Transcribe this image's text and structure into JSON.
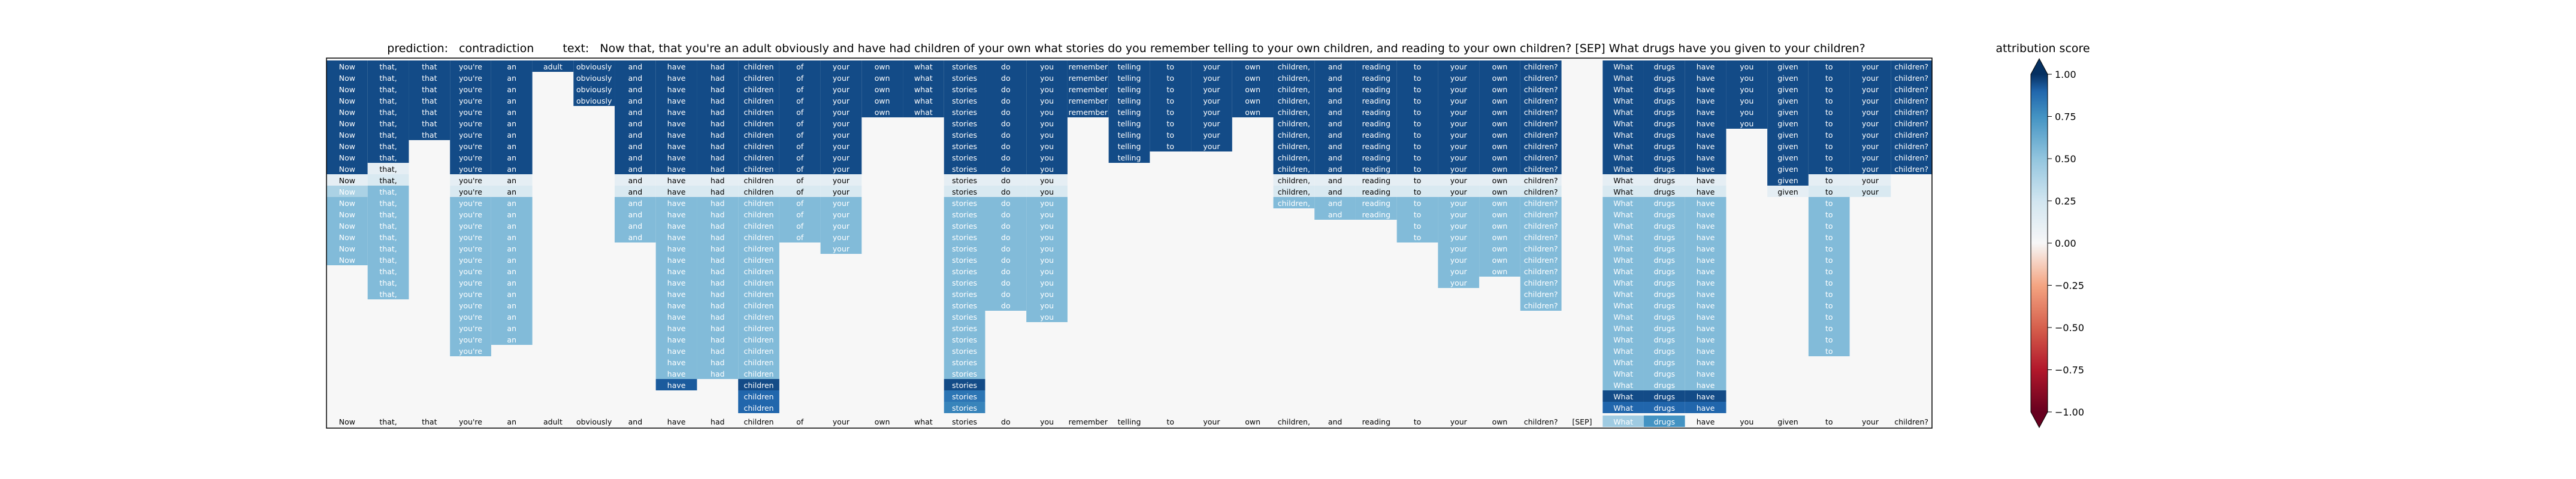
{
  "chart_data": {
    "type": "heatmap",
    "title": {
      "prediction_label": "prediction:",
      "prediction": "contradiction",
      "text_label": "text:",
      "text": "Now that, that you're an adult obviously and have had children of your own what stories do you remember telling to your own children, and reading to your own children? [SEP] What drugs have you given to your children?"
    },
    "tokens": [
      "Now",
      "that,",
      "that",
      "you're",
      "an",
      "adult",
      "obviously",
      "and",
      "have",
      "had",
      "children",
      "of",
      "your",
      "own",
      "what",
      "stories",
      "do",
      "you",
      "remember",
      "telling",
      "to",
      "your",
      "own",
      "children,",
      "and",
      "reading",
      "to",
      "your",
      "own",
      "children?",
      "[SEP]",
      "What",
      "drugs",
      "have",
      "you",
      "given",
      "to",
      "your",
      "children?"
    ],
    "row_count": 31,
    "colorbar": {
      "label": "attribution score",
      "vmin": -1.0,
      "vmax": 1.0,
      "ticks": [
        1.0,
        0.75,
        0.5,
        0.25,
        0.0,
        -0.25,
        -0.5,
        -0.75,
        -1.0
      ],
      "tick_labels": [
        "1.00",
        "0.75",
        "0.50",
        "0.25",
        "0.00",
        "−0.25",
        "−0.50",
        "−0.75",
        "−1.00"
      ],
      "colormap": "RdBu"
    },
    "columns": [
      {
        "rows": 10,
        "score": 0.95,
        "tail": [
          0.12,
          0.4,
          0.55,
          0.55,
          0.55,
          0.55,
          0.55,
          0.55
        ]
      },
      {
        "rows": 9,
        "score": 0.95,
        "tail": [
          0.12,
          0.2,
          0.55,
          0.55,
          0.55,
          0.55,
          0.55,
          0.55,
          0.55,
          0.55,
          0.55,
          0.55
        ]
      },
      {
        "rows": 7,
        "score": 0.95,
        "tail": []
      },
      {
        "rows": 10,
        "score": 0.95,
        "tail": [
          0.12,
          0.2,
          0.55,
          0.55,
          0.55,
          0.55,
          0.55,
          0.55,
          0.55,
          0.55,
          0.55,
          0.55,
          0.55,
          0.55,
          0.55,
          0.55
        ]
      },
      {
        "rows": 10,
        "score": 0.95,
        "tail": [
          0.12,
          0.2,
          0.55,
          0.55,
          0.55,
          0.55,
          0.55,
          0.55,
          0.55,
          0.55,
          0.55,
          0.55,
          0.55,
          0.55,
          0.55
        ]
      },
      {
        "rows": 1,
        "score": 0.95,
        "tail": []
      },
      {
        "rows": 4,
        "score": 0.95,
        "tail": []
      },
      {
        "rows": 10,
        "score": 0.95,
        "tail": [
          0.12,
          0.2,
          0.55,
          0.55,
          0.55,
          0.55
        ]
      },
      {
        "rows": 10,
        "score": 0.95,
        "tail": [
          0.12,
          0.2,
          0.55,
          0.55,
          0.55,
          0.55,
          0.55,
          0.55,
          0.55,
          0.55,
          0.55,
          0.55,
          0.55,
          0.55,
          0.55,
          0.55,
          0.55,
          0.55,
          0.92
        ]
      },
      {
        "rows": 10,
        "score": 0.95,
        "tail": [
          0.12,
          0.2,
          0.55,
          0.55,
          0.55,
          0.55,
          0.55,
          0.55,
          0.55,
          0.55,
          0.55,
          0.55,
          0.55,
          0.55,
          0.55,
          0.55,
          0.55,
          0.55
        ]
      },
      {
        "rows": 10,
        "score": 0.95,
        "tail": [
          0.12,
          0.2,
          0.55,
          0.55,
          0.55,
          0.55,
          0.55,
          0.55,
          0.55,
          0.55,
          0.55,
          0.55,
          0.55,
          0.55,
          0.55,
          0.55,
          0.55,
          0.55,
          0.95,
          0.9,
          0.9
        ]
      },
      {
        "rows": 10,
        "score": 0.95,
        "tail": [
          0.12,
          0.2,
          0.55,
          0.55,
          0.55,
          0.55
        ]
      },
      {
        "rows": 10,
        "score": 0.95,
        "tail": [
          0.12,
          0.2,
          0.55,
          0.55,
          0.55,
          0.55,
          0.55
        ]
      },
      {
        "rows": 5,
        "score": 0.95,
        "tail": []
      },
      {
        "rows": 5,
        "score": 0.95,
        "tail": []
      },
      {
        "rows": 10,
        "score": 0.95,
        "tail": [
          0.12,
          0.2,
          0.55,
          0.55,
          0.55,
          0.55,
          0.55,
          0.55,
          0.55,
          0.55,
          0.55,
          0.55,
          0.55,
          0.55,
          0.55,
          0.55,
          0.55,
          0.55,
          0.95,
          0.85,
          0.8,
          0.85,
          0.75
        ]
      },
      {
        "rows": 10,
        "score": 0.95,
        "tail": [
          0.12,
          0.2,
          0.55,
          0.55,
          0.55,
          0.55,
          0.55,
          0.55,
          0.55,
          0.55,
          0.55,
          0.55
        ]
      },
      {
        "rows": 10,
        "score": 0.95,
        "tail": [
          0.12,
          0.2,
          0.55,
          0.55,
          0.55,
          0.55,
          0.55,
          0.55,
          0.55,
          0.55,
          0.55,
          0.55,
          0.55
        ]
      },
      {
        "rows": 5,
        "score": 0.95,
        "tail": []
      },
      {
        "rows": 9,
        "score": 0.95,
        "tail": []
      },
      {
        "rows": 8,
        "score": 0.95,
        "tail": []
      },
      {
        "rows": 8,
        "score": 0.95,
        "tail": []
      },
      {
        "rows": 5,
        "score": 0.95,
        "tail": []
      },
      {
        "rows": 10,
        "score": 0.95,
        "tail": [
          0.12,
          0.2,
          0.55
        ]
      },
      {
        "rows": 10,
        "score": 0.95,
        "tail": [
          0.12,
          0.2,
          0.55,
          0.55
        ]
      },
      {
        "rows": 10,
        "score": 0.95,
        "tail": [
          0.12,
          0.2,
          0.55,
          0.55
        ]
      },
      {
        "rows": 10,
        "score": 0.95,
        "tail": [
          0.12,
          0.2,
          0.55,
          0.55,
          0.55,
          0.55
        ]
      },
      {
        "rows": 10,
        "score": 0.95,
        "tail": [
          0.12,
          0.2,
          0.55,
          0.55,
          0.55,
          0.55,
          0.55,
          0.55,
          0.55,
          0.55
        ]
      },
      {
        "rows": 10,
        "score": 0.95,
        "tail": [
          0.12,
          0.2,
          0.55,
          0.55,
          0.55,
          0.55,
          0.55,
          0.55,
          0.55
        ]
      },
      {
        "rows": 10,
        "score": 0.95,
        "tail": [
          0.12,
          0.2,
          0.55,
          0.55,
          0.55,
          0.55,
          0.55,
          0.55,
          0.55,
          0.55,
          0.55,
          0.55
        ]
      },
      {
        "rows": 0,
        "score": 0.95,
        "tail": []
      },
      {
        "rows": 10,
        "score": 0.95,
        "tail": [
          0.12,
          0.2,
          0.55,
          0.55,
          0.55,
          0.55,
          0.55,
          0.55,
          0.55,
          0.55,
          0.55,
          0.55,
          0.55,
          0.55,
          0.55,
          0.55,
          0.55,
          0.55,
          0.55,
          0.95,
          0.9,
          0.95,
          0.5
        ]
      },
      {
        "rows": 10,
        "score": 0.95,
        "tail": [
          0.12,
          0.2,
          0.55,
          0.55,
          0.55,
          0.55,
          0.55,
          0.55,
          0.55,
          0.55,
          0.55,
          0.55,
          0.55,
          0.55,
          0.55,
          0.55,
          0.55,
          0.55,
          0.55,
          0.95,
          0.9,
          0.95,
          0.6,
          0.8
        ]
      },
      {
        "rows": 10,
        "score": 0.95,
        "tail": [
          0.12,
          0.2,
          0.55,
          0.55,
          0.55,
          0.55,
          0.55,
          0.55,
          0.55,
          0.55,
          0.55,
          0.55,
          0.55,
          0.55,
          0.55,
          0.55,
          0.55,
          0.55,
          0.55,
          0.95,
          0.9,
          0.95
        ]
      },
      {
        "rows": 6,
        "score": 0.95,
        "tail": []
      },
      {
        "rows": 11,
        "score": 0.95,
        "tail": [
          0.12
        ]
      },
      {
        "rows": 10,
        "score": 0.95,
        "tail": [
          0.12,
          0.2,
          0.55,
          0.55,
          0.55,
          0.55,
          0.55,
          0.55,
          0.55,
          0.55,
          0.55,
          0.55,
          0.55,
          0.55,
          0.55,
          0.55
        ]
      },
      {
        "rows": 10,
        "score": 0.95,
        "tail": [
          0.12,
          0.2
        ]
      },
      {
        "rows": 10,
        "score": 0.95,
        "tail": []
      }
    ]
  }
}
